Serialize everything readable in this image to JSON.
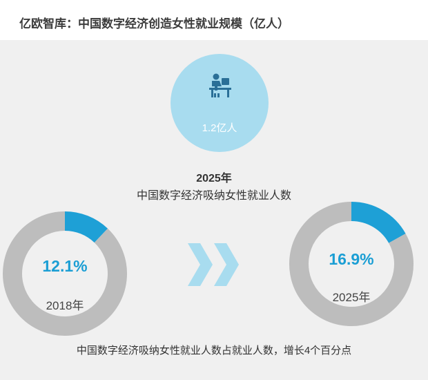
{
  "header": {
    "title": "亿欧智库：中国数字经济创造女性就业规模（亿人）"
  },
  "highlight": {
    "value": "1.2亿人",
    "year": "2025年",
    "description": "中国数字经济吸纳女性就业人数",
    "icon": "person-at-desk-icon"
  },
  "chart_data": [
    {
      "type": "pie",
      "label": "2018年",
      "value_label": "12.1%",
      "values": [
        12.1,
        87.9
      ],
      "colors": [
        "#1ea0d6",
        "#bdbdbd"
      ]
    },
    {
      "type": "pie",
      "label": "2025年",
      "value_label": "16.9%",
      "values": [
        16.9,
        83.1
      ],
      "colors": [
        "#1ea0d6",
        "#bdbdbd"
      ]
    }
  ],
  "footer": {
    "text": "中国数字经济吸纳女性就业人数占就业人数，增长4个百分点"
  },
  "colors": {
    "accent": "#1ea0d6",
    "track": "#bdbdbd",
    "bubble": "#a8dcef",
    "arrow": "#a8dcef"
  }
}
